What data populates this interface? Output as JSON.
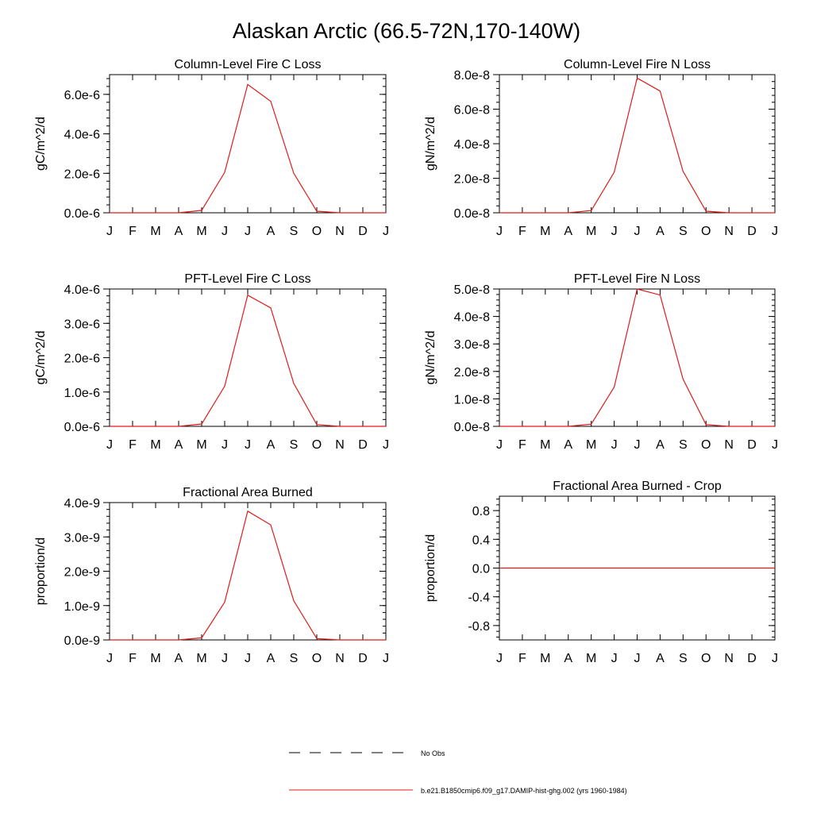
{
  "figure": {
    "title": "Alaskan Arctic (66.5-72N,170-140W)"
  },
  "legend": {
    "placement": "bottom-center",
    "entries": [
      {
        "label": "No Obs",
        "style": "dashed",
        "color": "#000000"
      },
      {
        "label": "b.e21.B1850cmip6.f09_g17.DAMIP-hist-ghg.002 (yrs 1960-1984)",
        "style": "solid",
        "color": "#e01b1b"
      }
    ]
  },
  "chart_data": [
    {
      "type": "line",
      "title": "Column-Level Fire C Loss",
      "ylabel": "gC/m^2/d",
      "categories": [
        "J",
        "F",
        "M",
        "A",
        "M",
        "J",
        "J",
        "A",
        "S",
        "O",
        "N",
        "D",
        "J"
      ],
      "ylim": [
        0,
        7e-06
      ],
      "yticks": [
        0,
        2e-06,
        4e-06,
        6e-06
      ],
      "ytick_labels": [
        "0.0e-6",
        "2.0e-6",
        "4.0e-6",
        "6.0e-6"
      ],
      "series": [
        {
          "color": "#e01b1b",
          "values": [
            0,
            0,
            0,
            0,
            1.2e-07,
            2.05e-06,
            6.5e-06,
            5.65e-06,
            2e-06,
            8e-08,
            0,
            0,
            0
          ]
        }
      ]
    },
    {
      "type": "line",
      "title": "Column-Level Fire N Loss",
      "ylabel": "gN/m^2/d",
      "categories": [
        "J",
        "F",
        "M",
        "A",
        "M",
        "J",
        "J",
        "A",
        "S",
        "O",
        "N",
        "D",
        "J"
      ],
      "ylim": [
        0,
        8e-08
      ],
      "yticks": [
        0,
        2e-08,
        4e-08,
        6e-08,
        8e-08
      ],
      "ytick_labels": [
        "0.0e-8",
        "2.0e-8",
        "4.0e-8",
        "6.0e-8",
        "8.0e-8"
      ],
      "series": [
        {
          "color": "#e01b1b",
          "values": [
            0,
            0,
            0,
            0,
            1.3e-09,
            2.35e-08,
            7.8e-08,
            7.05e-08,
            2.4e-08,
            9e-10,
            0,
            0,
            0
          ]
        }
      ]
    },
    {
      "type": "line",
      "title": "PFT-Level Fire C Loss",
      "ylabel": "gC/m^2/d",
      "categories": [
        "J",
        "F",
        "M",
        "A",
        "M",
        "J",
        "J",
        "A",
        "S",
        "O",
        "N",
        "D",
        "J"
      ],
      "ylim": [
        0,
        4e-06
      ],
      "yticks": [
        0,
        1e-06,
        2e-06,
        3e-06,
        4e-06
      ],
      "ytick_labels": [
        "0.0e-6",
        "1.0e-6",
        "2.0e-6",
        "3.0e-6",
        "4.0e-6"
      ],
      "series": [
        {
          "color": "#e01b1b",
          "values": [
            0,
            0,
            0,
            0,
            7e-08,
            1.17e-06,
            3.82e-06,
            3.45e-06,
            1.25e-06,
            5e-08,
            0,
            0,
            0
          ]
        }
      ]
    },
    {
      "type": "line",
      "title": "PFT-Level Fire N Loss",
      "ylabel": "gN/m^2/d",
      "categories": [
        "J",
        "F",
        "M",
        "A",
        "M",
        "J",
        "J",
        "A",
        "S",
        "O",
        "N",
        "D",
        "J"
      ],
      "ylim": [
        0,
        5e-08
      ],
      "yticks": [
        0,
        1e-08,
        2e-08,
        3e-08,
        4e-08,
        5e-08
      ],
      "ytick_labels": [
        "0.0e-8",
        "1.0e-8",
        "2.0e-8",
        "3.0e-8",
        "4.0e-8",
        "5.0e-8"
      ],
      "series": [
        {
          "color": "#e01b1b",
          "values": [
            0,
            0,
            0,
            0,
            8e-10,
            1.43e-08,
            5e-08,
            4.78e-08,
            1.72e-08,
            6e-10,
            0,
            0,
            0
          ]
        }
      ]
    },
    {
      "type": "line",
      "title": "Fractional Area Burned",
      "ylabel": "proportion/d",
      "categories": [
        "J",
        "F",
        "M",
        "A",
        "M",
        "J",
        "J",
        "A",
        "S",
        "O",
        "N",
        "D",
        "J"
      ],
      "ylim": [
        0,
        4e-09
      ],
      "yticks": [
        0,
        1e-09,
        2e-09,
        3e-09,
        4e-09
      ],
      "ytick_labels": [
        "0.0e-9",
        "1.0e-9",
        "2.0e-9",
        "3.0e-9",
        "4.0e-9"
      ],
      "series": [
        {
          "color": "#e01b1b",
          "values": [
            0,
            0,
            0,
            0,
            6e-11,
            1.1e-09,
            3.75e-09,
            3.35e-09,
            1.14e-09,
            4e-11,
            0,
            0,
            0
          ]
        }
      ]
    },
    {
      "type": "line",
      "title": "Fractional Area Burned - Crop",
      "ylabel": "proportion/d",
      "categories": [
        "J",
        "F",
        "M",
        "A",
        "M",
        "J",
        "J",
        "A",
        "S",
        "O",
        "N",
        "D",
        "J"
      ],
      "ylim": [
        -1.0,
        1.0
      ],
      "yticks": [
        -0.8,
        -0.4,
        0.0,
        0.4,
        0.8
      ],
      "ytick_labels": [
        "-0.8",
        "-0.4",
        "0.0",
        "0.4",
        "0.8"
      ],
      "series": [
        {
          "color": "#e01b1b",
          "values": [
            0,
            0,
            0,
            0,
            0,
            0,
            0,
            0,
            0,
            0,
            0,
            0,
            0
          ]
        }
      ]
    }
  ]
}
